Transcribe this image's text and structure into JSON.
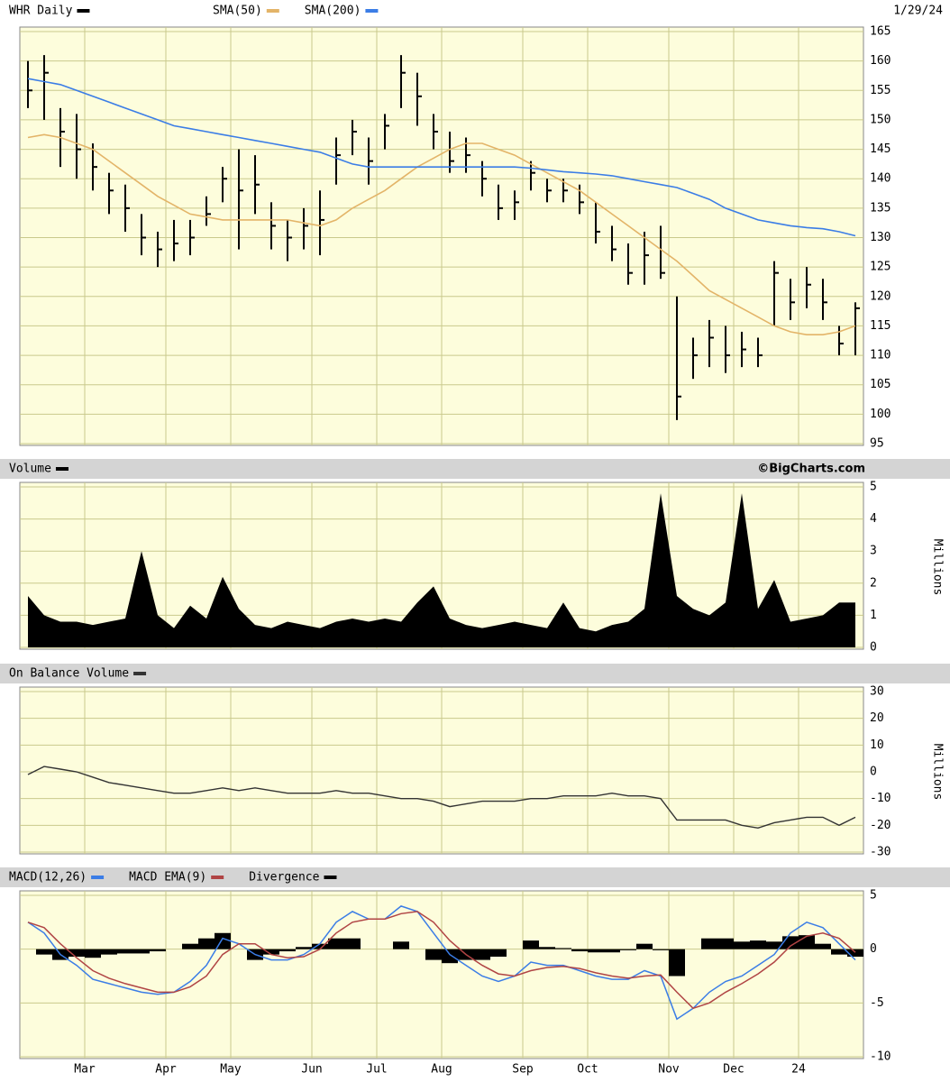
{
  "chart_data": {
    "type": "stock",
    "date": "1/29/24",
    "watermark": "©BigCharts.com",
    "grid": true,
    "categories": [
      null,
      null,
      null,
      null,
      "Mar",
      null,
      null,
      null,
      null,
      "Apr",
      null,
      null,
      null,
      "May",
      null,
      null,
      null,
      null,
      "Jun",
      null,
      null,
      null,
      "Jul",
      null,
      null,
      null,
      "Aug",
      null,
      null,
      null,
      null,
      "Sep",
      null,
      null,
      null,
      "Oct",
      null,
      null,
      null,
      null,
      "Nov",
      null,
      null,
      null,
      "Dec",
      null,
      null,
      null,
      "24",
      null,
      null,
      null
    ],
    "panels": [
      {
        "type": "hlc",
        "title": "WHR Daily",
        "color": "#000000",
        "high": [
          160,
          161,
          152,
          151,
          146,
          141,
          139,
          134,
          131,
          133,
          133,
          137,
          142,
          145,
          144,
          136,
          133,
          135,
          138,
          147,
          150,
          147,
          151,
          161,
          158,
          151,
          148,
          147,
          143,
          139,
          138,
          143,
          140,
          140,
          139,
          136,
          132,
          129,
          131,
          132,
          120,
          113,
          116,
          115,
          114,
          113,
          126,
          123,
          125,
          123,
          115,
          119
        ],
        "low": [
          152,
          150,
          142,
          140,
          138,
          134,
          131,
          127,
          125,
          126,
          127,
          132,
          136,
          128,
          134,
          128,
          126,
          128,
          127,
          139,
          144,
          139,
          145,
          152,
          149,
          145,
          141,
          141,
          137,
          133,
          133,
          138,
          136,
          136,
          134,
          129,
          126,
          122,
          122,
          123,
          99,
          106,
          108,
          107,
          108,
          108,
          115,
          116,
          118,
          116,
          110,
          110
        ],
        "close": [
          155,
          158,
          148,
          145,
          142,
          138,
          135,
          130,
          128,
          129,
          130,
          134,
          140,
          138,
          139,
          132,
          130,
          132,
          133,
          144,
          148,
          143,
          149,
          158,
          154,
          148,
          143,
          144,
          140,
          135,
          136,
          141,
          138,
          138,
          136,
          131,
          128,
          124,
          127,
          124,
          103,
          110,
          113,
          110,
          111,
          110,
          124,
          119,
          122,
          119,
          112,
          118
        ],
        "series": [
          {
            "name": "SMA(50)",
            "color": "#e3b468",
            "values": [
              147,
              147.5,
              147,
              146,
              145,
              143,
              141,
              139,
              137,
              135.5,
              134,
              133.5,
              133,
              133,
              133,
              133,
              133,
              132.5,
              132,
              133,
              135,
              136.5,
              138,
              140,
              142,
              143.5,
              145,
              146,
              146,
              145,
              144,
              142.5,
              141,
              139.5,
              138,
              136,
              134,
              132,
              130,
              128,
              126,
              123.5,
              121,
              119.5,
              118,
              116.5,
              115,
              114,
              113.5,
              113.5,
              114,
              115
            ]
          },
          {
            "name": "SMA(200)",
            "color": "#3b7de6",
            "values": [
              157,
              156.5,
              156,
              155,
              154,
              153,
              152,
              151,
              150,
              149,
              148.5,
              148,
              147.5,
              147,
              146.5,
              146,
              145.5,
              145,
              144.5,
              143.5,
              142.5,
              142,
              142,
              142,
              142,
              142,
              142,
              142,
              142,
              142,
              142,
              141.8,
              141.5,
              141.2,
              141,
              140.8,
              140.5,
              140,
              139.5,
              139,
              138.5,
              137.5,
              136.5,
              135,
              134,
              133,
              132.5,
              132,
              131.7,
              131.5,
              131,
              130.3
            ]
          }
        ],
        "ylim": [
          95,
          165
        ],
        "yticks": [
          95,
          100,
          105,
          110,
          115,
          120,
          125,
          130,
          135,
          140,
          145,
          150,
          155,
          160,
          165
        ]
      },
      {
        "type": "area",
        "title": "Volume",
        "color": "#000000",
        "ylabel": "Millions",
        "values": [
          1.6,
          1.0,
          0.8,
          0.8,
          0.7,
          0.8,
          0.9,
          3.0,
          1.0,
          0.6,
          1.3,
          0.9,
          2.2,
          1.2,
          0.7,
          0.6,
          0.8,
          0.7,
          0.6,
          0.8,
          0.9,
          0.8,
          0.9,
          0.8,
          1.4,
          1.9,
          0.9,
          0.7,
          0.6,
          0.7,
          0.8,
          0.7,
          0.6,
          1.4,
          0.6,
          0.5,
          0.7,
          0.8,
          1.2,
          4.8,
          1.6,
          1.2,
          1.0,
          1.4,
          4.8,
          1.2,
          2.1,
          0.8,
          0.9,
          1.0,
          1.4,
          1.4
        ],
        "ylim": [
          0,
          5
        ],
        "yticks": [
          0,
          1,
          2,
          3,
          4,
          5
        ]
      },
      {
        "type": "line",
        "title": "On Balance Volume",
        "color": "#333333",
        "ylabel": "Millions",
        "values": [
          -1,
          2,
          1,
          0,
          -2,
          -4,
          -5,
          -6,
          -7,
          -8,
          -8,
          -7,
          -6,
          -7,
          -6,
          -7,
          -8,
          -8,
          -8,
          -7,
          -8,
          -8,
          -9,
          -10,
          -10,
          -11,
          -13,
          -12,
          -11,
          -11,
          -11,
          -10,
          -10,
          -9,
          -9,
          -9,
          -8,
          -9,
          -9,
          -10,
          -18,
          -18,
          -18,
          -18,
          -20,
          -21,
          -19,
          -18,
          -17,
          -17,
          -20,
          -17
        ],
        "ylim": [
          -30,
          30
        ],
        "yticks": [
          -30,
          -20,
          -10,
          0,
          10,
          20,
          30
        ]
      },
      {
        "type": "macd",
        "series": [
          {
            "name": "MACD(12,26)",
            "color": "#3b7de6",
            "values": [
              2.5,
              1.5,
              -0.5,
              -1.5,
              -2.8,
              -3.2,
              -3.6,
              -4.0,
              -4.2,
              -4.0,
              -3.0,
              -1.5,
              1.0,
              0.5,
              -0.5,
              -1.0,
              -1.0,
              -0.5,
              0.5,
              2.5,
              3.5,
              2.8,
              2.8,
              4.0,
              3.5,
              1.5,
              -0.5,
              -1.5,
              -2.5,
              -3.0,
              -2.5,
              -1.2,
              -1.5,
              -1.5,
              -2.0,
              -2.5,
              -2.8,
              -2.8,
              -2.0,
              -2.5,
              -6.5,
              -5.5,
              -4.0,
              -3.0,
              -2.5,
              -1.5,
              -0.5,
              1.5,
              2.5,
              2.0,
              0.5,
              -1.0
            ]
          },
          {
            "name": "MACD EMA(9)",
            "color": "#b04444",
            "values": [
              2.5,
              2.0,
              0.5,
              -0.8,
              -2.0,
              -2.7,
              -3.2,
              -3.6,
              -4.0,
              -4.0,
              -3.5,
              -2.5,
              -0.5,
              0.5,
              0.5,
              -0.5,
              -0.8,
              -0.7,
              0,
              1.5,
              2.5,
              2.8,
              2.8,
              3.3,
              3.5,
              2.5,
              0.8,
              -0.5,
              -1.5,
              -2.3,
              -2.5,
              -2.0,
              -1.7,
              -1.6,
              -1.8,
              -2.2,
              -2.5,
              -2.7,
              -2.5,
              -2.4,
              -4.0,
              -5.5,
              -5.0,
              -4.0,
              -3.2,
              -2.3,
              -1.2,
              0.3,
              1.2,
              1.5,
              1.0,
              -0.3
            ]
          },
          {
            "name": "Divergence",
            "color": "#000000",
            "kind": "bar",
            "values": [
              0,
              -0.5,
              -1.0,
              -0.7,
              -0.8,
              -0.5,
              -0.4,
              -0.4,
              -0.2,
              0,
              0.5,
              1.0,
              1.5,
              0,
              -1.0,
              -0.5,
              -0.2,
              0.2,
              0.5,
              1.0,
              1.0,
              0,
              0,
              0.7,
              0,
              -1.0,
              -1.3,
              -1.0,
              -1.0,
              -0.7,
              0,
              0.8,
              0.2,
              0.1,
              -0.2,
              -0.3,
              -0.3,
              -0.1,
              0.5,
              -0.1,
              -2.5,
              0,
              1.0,
              1.0,
              0.7,
              0.8,
              0.7,
              1.2,
              1.3,
              0.5,
              -0.5,
              -0.7
            ]
          }
        ],
        "ylim": [
          -10,
          5
        ],
        "yticks": [
          -10,
          -5,
          0,
          5
        ]
      }
    ]
  }
}
